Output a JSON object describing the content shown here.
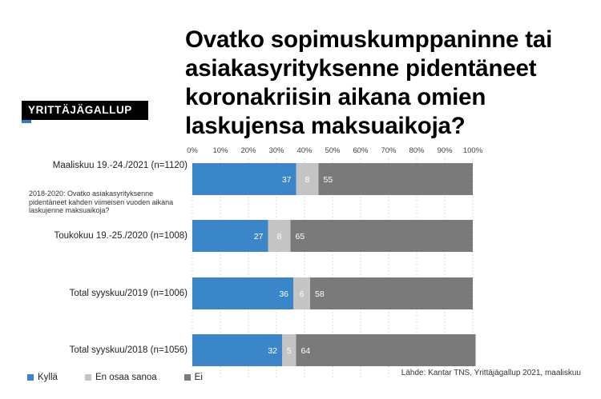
{
  "title": "Ovatko sopimuskumppaninne tai asiakasyrityksenne pidentäneet koronakriisin aikana omien laskujensa maksuaikoja?",
  "brand": "YRITTÄJÄGALLUP",
  "note": "2018-2020: Ovatko asiakasyrityksenne pidentäneet kahden viimeisen vuoden aikana laskujenne maksuaikoja?",
  "source": "Lähde: Kantar TNS, Yrittäjägallup 2021, maaliskuu",
  "colors": {
    "kylla": "#3a86c8",
    "eos": "#c4c4c4",
    "ei": "#7a7a7a"
  },
  "chart_data": {
    "type": "bar",
    "orientation": "horizontal",
    "stacked": true,
    "categories": [
      "Maaliskuu 19.-24./2021 (n=1120)",
      "Toukokuu 19.-25./2020 (n=1008)",
      "Total syyskuu/2019 (n=1006)",
      "Total syyskuu/2018 (n=1056)"
    ],
    "series": [
      {
        "name": "Kyllä",
        "values": [
          37,
          27,
          36,
          32
        ]
      },
      {
        "name": "En osaa sanoa",
        "values": [
          8,
          8,
          6,
          5
        ]
      },
      {
        "name": "Ei",
        "values": [
          55,
          65,
          58,
          64
        ]
      }
    ],
    "xlim": [
      0,
      100
    ],
    "xticks": [
      "0%",
      "10%",
      "20%",
      "30%",
      "40%",
      "50%",
      "60%",
      "70%",
      "80%",
      "90%",
      "100%"
    ],
    "grid": true,
    "legend_position": "bottom-left"
  }
}
